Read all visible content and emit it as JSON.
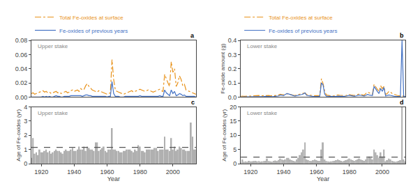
{
  "chart_data": [
    {
      "type": "line",
      "x": [
        1914,
        1915,
        1916,
        1917,
        1918,
        1919,
        1920,
        1921,
        1922,
        1923,
        1924,
        1925,
        1926,
        1927,
        1928,
        1929,
        1930,
        1931,
        1932,
        1933,
        1934,
        1935,
        1936,
        1937,
        1938,
        1939,
        1940,
        1941,
        1942,
        1943,
        1944,
        1945,
        1946,
        1947,
        1948,
        1949,
        1950,
        1951,
        1952,
        1953,
        1954,
        1955,
        1956,
        1957,
        1958,
        1959,
        1960,
        1961,
        1962,
        1963,
        1964,
        1965,
        1966,
        1967,
        1968,
        1969,
        1970,
        1971,
        1972,
        1973,
        1974,
        1975,
        1976,
        1977,
        1978,
        1979,
        1980,
        1981,
        1982,
        1983,
        1984,
        1985,
        1986,
        1987,
        1988,
        1989,
        1990,
        1991,
        1992,
        1993,
        1994,
        1995,
        1996,
        1997,
        1998,
        1999,
        2000,
        2001,
        2002,
        2003,
        2004,
        2005,
        2006,
        2007,
        2008,
        2009,
        2010,
        2011,
        2012,
        2013,
        2014
      ],
      "series": [
        {
          "name": "Total Fe-oxides at surface",
          "color": "#E8921A",
          "line_style": "dashdot",
          "values": [
            0.005,
            0.006,
            0.004,
            0.005,
            0.006,
            0.007,
            0.008,
            0.009,
            0.007,
            0.008,
            0.006,
            0.007,
            0.005,
            0.006,
            0.007,
            0.008,
            0.006,
            0.007,
            0.005,
            0.006,
            0.007,
            0.008,
            0.006,
            0.007,
            0.009,
            0.01,
            0.008,
            0.009,
            0.01,
            0.008,
            0.012,
            0.01,
            0.011,
            0.016,
            0.019,
            0.015,
            0.012,
            0.01,
            0.009,
            0.008,
            0.007,
            0.009,
            0.008,
            0.007,
            0.006,
            0.005,
            0.004,
            0.005,
            0.006,
            0.053,
            0.025,
            0.01,
            0.008,
            0.007,
            0.006,
            0.005,
            0.004,
            0.005,
            0.006,
            0.007,
            0.008,
            0.009,
            0.007,
            0.008,
            0.009,
            0.01,
            0.011,
            0.01,
            0.009,
            0.008,
            0.009,
            0.01,
            0.009,
            0.008,
            0.007,
            0.008,
            0.009,
            0.01,
            0.011,
            0.009,
            0.008,
            0.032,
            0.025,
            0.02,
            0.015,
            0.05,
            0.035,
            0.04,
            0.015,
            0.02,
            0.03,
            0.025,
            0.016,
            0.018,
            0.01,
            0.009,
            0.008,
            0.007,
            0.006,
            0.005,
            0.004
          ]
        },
        {
          "name": "Fe-oxides of previous years",
          "color": "#4472C4",
          "line_style": "solid",
          "values": [
            0.0,
            0.0,
            0.0,
            0.0,
            0.0,
            0.0,
            0.0,
            0.001,
            0.0,
            0.001,
            0.0,
            0.001,
            0.0,
            0.0,
            0.001,
            0.002,
            0.001,
            0.001,
            0.0,
            0.0,
            0.001,
            0.001,
            0.001,
            0.001,
            0.002,
            0.002,
            0.002,
            0.002,
            0.002,
            0.002,
            0.002,
            0.001,
            0.002,
            0.003,
            0.003,
            0.002,
            0.002,
            0.001,
            0.001,
            0.001,
            0.001,
            0.001,
            0.001,
            0.001,
            0.001,
            0.001,
            0.0,
            0.001,
            0.001,
            0.022,
            0.005,
            0.001,
            0.001,
            0.001,
            0.0,
            0.0,
            0.0,
            0.001,
            0.001,
            0.001,
            0.001,
            0.001,
            0.001,
            0.001,
            0.001,
            0.001,
            0.002,
            0.001,
            0.001,
            0.001,
            0.001,
            0.001,
            0.001,
            0.001,
            0.001,
            0.001,
            0.001,
            0.001,
            0.002,
            0.001,
            0.001,
            0.01,
            0.006,
            0.004,
            0.002,
            0.01,
            0.005,
            0.008,
            0.002,
            0.003,
            0.005,
            0.004,
            0.002,
            0.003,
            0.001,
            0.001,
            0.001,
            0.001,
            0.001,
            0.001,
            0.0
          ]
        }
      ],
      "xlim": [
        1914,
        2014
      ],
      "ylim": [
        0,
        0.08
      ],
      "yticks": [
        {
          "value": 0,
          "label": "0.00"
        },
        0.02,
        0.04,
        0.06,
        0.08
      ],
      "tick_labels": "y",
      "grid": false,
      "legend": "top left",
      "annotations": [
        {
          "text": "Upper stake",
          "color": "#888888"
        },
        {
          "text": "a"
        }
      ]
    },
    {
      "type": "line",
      "x": [
        1914,
        1915,
        1916,
        1917,
        1918,
        1919,
        1920,
        1921,
        1922,
        1923,
        1924,
        1925,
        1926,
        1927,
        1928,
        1929,
        1930,
        1931,
        1932,
        1933,
        1934,
        1935,
        1936,
        1937,
        1938,
        1939,
        1940,
        1941,
        1942,
        1943,
        1944,
        1945,
        1946,
        1947,
        1948,
        1949,
        1950,
        1951,
        1952,
        1953,
        1954,
        1955,
        1956,
        1957,
        1958,
        1959,
        1960,
        1961,
        1962,
        1963,
        1964,
        1965,
        1966,
        1967,
        1968,
        1969,
        1970,
        1971,
        1972,
        1973,
        1974,
        1975,
        1976,
        1977,
        1978,
        1979,
        1980,
        1981,
        1982,
        1983,
        1984,
        1985,
        1986,
        1987,
        1988,
        1989,
        1990,
        1991,
        1992,
        1993,
        1994,
        1995,
        1996,
        1997,
        1998,
        1999,
        2000,
        2001,
        2002,
        2003,
        2004,
        2005,
        2006,
        2007,
        2008,
        2009,
        2010,
        2011,
        2012,
        2013,
        2014
      ],
      "series": [
        {
          "name": "Total Fe-oxides at surface",
          "color": "#E8921A",
          "line_style": "dashdot",
          "values": [
            0.005,
            0.007,
            0.005,
            0.006,
            0.007,
            0.008,
            0.008,
            0.01,
            0.009,
            0.012,
            0.01,
            0.011,
            0.009,
            0.01,
            0.011,
            0.012,
            0.01,
            0.011,
            0.009,
            0.01,
            0.012,
            0.011,
            0.01,
            0.015,
            0.02,
            0.018,
            0.016,
            0.02,
            0.025,
            0.022,
            0.018,
            0.015,
            0.013,
            0.012,
            0.015,
            0.018,
            0.02,
            0.022,
            0.025,
            0.03,
            0.018,
            0.015,
            0.013,
            0.012,
            0.01,
            0.009,
            0.008,
            0.01,
            0.012,
            0.13,
            0.095,
            0.04,
            0.015,
            0.012,
            0.01,
            0.008,
            0.007,
            0.009,
            0.012,
            0.015,
            0.013,
            0.011,
            0.009,
            0.01,
            0.012,
            0.015,
            0.018,
            0.015,
            0.013,
            0.011,
            0.015,
            0.018,
            0.022,
            0.018,
            0.015,
            0.013,
            0.025,
            0.035,
            0.03,
            0.025,
            0.02,
            0.09,
            0.07,
            0.055,
            0.04,
            0.08,
            0.06,
            0.075,
            0.018,
            0.025,
            0.04,
            0.035,
            0.025,
            0.02,
            0.015,
            0.012,
            0.01,
            0.009,
            0.008,
            0.007,
            0.006
          ]
        },
        {
          "name": "Fe-oxides of previous years",
          "color": "#4472C4",
          "line_style": "solid",
          "values": [
            0.0,
            0.001,
            0.001,
            0.001,
            0.001,
            0.001,
            0.001,
            0.002,
            0.002,
            0.002,
            0.002,
            0.003,
            0.003,
            0.003,
            0.004,
            0.005,
            0.004,
            0.004,
            0.003,
            0.003,
            0.004,
            0.005,
            0.004,
            0.008,
            0.015,
            0.012,
            0.01,
            0.018,
            0.025,
            0.022,
            0.018,
            0.012,
            0.01,
            0.008,
            0.01,
            0.012,
            0.015,
            0.018,
            0.022,
            0.03,
            0.012,
            0.009,
            0.007,
            0.006,
            0.005,
            0.004,
            0.003,
            0.004,
            0.006,
            0.1,
            0.085,
            0.02,
            0.006,
            0.005,
            0.004,
            0.003,
            0.003,
            0.004,
            0.005,
            0.007,
            0.006,
            0.005,
            0.004,
            0.005,
            0.007,
            0.01,
            0.012,
            0.01,
            0.008,
            0.006,
            0.008,
            0.012,
            0.015,
            0.012,
            0.01,
            0.008,
            0.012,
            0.018,
            0.015,
            0.012,
            0.01,
            0.075,
            0.055,
            0.04,
            0.025,
            0.06,
            0.04,
            0.068,
            0.008,
            0.01,
            0.015,
            0.012,
            0.008,
            0.006,
            0.005,
            0.004,
            0.003,
            0.003,
            0.4,
            0.005,
            0.003
          ]
        }
      ],
      "xlim": [
        1914,
        2014
      ],
      "ylim": [
        0,
        0.4
      ],
      "yticks": [
        {
          "value": 0,
          "label": "0.0"
        },
        0.1,
        0.2,
        0.3,
        0.4
      ],
      "ylabel": "Fe-oxide amount (g)",
      "tick_labels": "y",
      "grid": false,
      "legend": "top left",
      "annotations": [
        {
          "text": "Lower stake",
          "color": "#888888"
        },
        {
          "text": "b"
        }
      ]
    },
    {
      "type": "bar",
      "x": [
        1914,
        1915,
        1916,
        1917,
        1918,
        1919,
        1920,
        1921,
        1922,
        1923,
        1924,
        1925,
        1926,
        1927,
        1928,
        1929,
        1930,
        1931,
        1932,
        1933,
        1934,
        1935,
        1936,
        1937,
        1938,
        1939,
        1940,
        1941,
        1942,
        1943,
        1944,
        1945,
        1946,
        1947,
        1948,
        1949,
        1950,
        1951,
        1952,
        1953,
        1954,
        1955,
        1956,
        1957,
        1958,
        1959,
        1960,
        1961,
        1962,
        1963,
        1964,
        1965,
        1966,
        1967,
        1968,
        1969,
        1970,
        1971,
        1972,
        1973,
        1974,
        1975,
        1976,
        1977,
        1978,
        1979,
        1980,
        1981,
        1982,
        1983,
        1984,
        1985,
        1986,
        1987,
        1988,
        1989,
        1990,
        1991,
        1992,
        1993,
        1994,
        1995,
        1996,
        1997,
        1998,
        1999,
        2000,
        2001,
        2002,
        2003,
        2004,
        2005,
        2006,
        2007,
        2008,
        2009,
        2010,
        2011,
        2012,
        2013,
        2014
      ],
      "values": [
        0.4,
        1.8,
        0.7,
        0.8,
        0.6,
        1.0,
        0.8,
        0.8,
        0.9,
        1.0,
        0.8,
        0.9,
        0.7,
        0.8,
        0.9,
        1.0,
        0.9,
        0.9,
        0.8,
        0.7,
        0.9,
        1.0,
        0.9,
        0.9,
        1.0,
        1.1,
        0.9,
        0.9,
        1.0,
        1.2,
        1.0,
        1.0,
        1.2,
        0.9,
        1.2,
        1.1,
        1.0,
        1.0,
        0.9,
        1.5,
        1.5,
        0.9,
        1.0,
        1.1,
        1.2,
        0.9,
        0.8,
        1.0,
        1.0,
        2.5,
        1.0,
        1.0,
        0.9,
        0.9,
        0.8,
        0.8,
        0.9,
        0.9,
        1.0,
        1.0,
        1.0,
        0.9,
        0.8,
        1.0,
        0.9,
        1.3,
        1.2,
        0.9,
        0.9,
        0.8,
        1.0,
        1.0,
        1.0,
        1.0,
        1.0,
        1.1,
        1.1,
        0.9,
        1.0,
        1.0,
        1.0,
        1.9,
        1.0,
        1.0,
        0.9,
        1.8,
        1.0,
        1.2,
        0.9,
        1.0,
        1.2,
        1.1,
        1.0,
        1.0,
        0.9,
        0.9,
        0.9,
        2.9,
        1.9,
        1.0,
        1.0
      ],
      "color": "#B0B0B0",
      "mean_line": {
        "y": 1.15,
        "color": "#555555",
        "line_style": "dash"
      },
      "xlim": [
        1914,
        2014
      ],
      "xticks": [
        1920,
        1940,
        1960,
        1980,
        2000
      ],
      "ylim": [
        0,
        4
      ],
      "yticks": [
        0,
        1,
        2,
        3,
        4
      ],
      "xlabel": "Year",
      "ylabel": "Age of Fe-oxides (yr)",
      "grid": false,
      "annotations": [
        {
          "text": "Upper stake",
          "color": "#888888"
        },
        {
          "text": "c"
        }
      ]
    },
    {
      "type": "bar",
      "x": [
        1914,
        1915,
        1916,
        1917,
        1918,
        1919,
        1920,
        1921,
        1922,
        1923,
        1924,
        1925,
        1926,
        1927,
        1928,
        1929,
        1930,
        1931,
        1932,
        1933,
        1934,
        1935,
        1936,
        1937,
        1938,
        1939,
        1940,
        1941,
        1942,
        1943,
        1944,
        1945,
        1946,
        1947,
        1948,
        1949,
        1950,
        1951,
        1952,
        1953,
        1954,
        1955,
        1956,
        1957,
        1958,
        1959,
        1960,
        1961,
        1962,
        1963,
        1964,
        1965,
        1966,
        1967,
        1968,
        1969,
        1970,
        1971,
        1972,
        1973,
        1974,
        1975,
        1976,
        1977,
        1978,
        1979,
        1980,
        1981,
        1982,
        1983,
        1984,
        1985,
        1986,
        1987,
        1988,
        1989,
        1990,
        1991,
        1992,
        1993,
        1994,
        1995,
        1996,
        1997,
        1998,
        1999,
        2000,
        2001,
        2002,
        2003,
        2004,
        2005,
        2006,
        2007,
        2008,
        2009,
        2010,
        2011,
        2012,
        2013,
        2014
      ],
      "values": [
        0.4,
        1.5,
        0.7,
        0.8,
        0.6,
        1.0,
        0.8,
        0.8,
        0.9,
        1.0,
        0.8,
        0.9,
        0.7,
        0.8,
        0.9,
        1.0,
        1.8,
        0.9,
        0.8,
        0.7,
        1.0,
        1.1,
        0.9,
        1.3,
        1.8,
        1.5,
        1.2,
        1.5,
        2.0,
        2.0,
        1.5,
        1.2,
        1.0,
        0.8,
        1.5,
        2.0,
        3.0,
        4.0,
        5.0,
        7.5,
        1.5,
        1.2,
        1.0,
        0.9,
        1.2,
        1.5,
        1.2,
        1.0,
        1.0,
        5.0,
        7.5,
        1.5,
        0.9,
        0.8,
        0.7,
        0.8,
        0.9,
        1.0,
        1.2,
        1.5,
        1.2,
        1.0,
        0.8,
        1.0,
        1.2,
        1.5,
        1.8,
        1.5,
        1.2,
        1.0,
        1.2,
        1.5,
        1.8,
        1.5,
        1.2,
        1.0,
        1.5,
        2.0,
        2.5,
        2.0,
        1.5,
        5.0,
        4.0,
        3.0,
        2.0,
        4.0,
        2.5,
        5.0,
        0.8,
        1.2,
        1.8,
        1.5,
        1.0,
        0.8,
        0.7,
        0.8,
        1.0,
        1.2,
        20.0,
        1.5,
        0.8
      ],
      "color": "#B0B0B0",
      "mean_line": {
        "y": 2.3,
        "color": "#555555",
        "line_style": "dash"
      },
      "xlim": [
        1914,
        2014
      ],
      "xticks": [
        1920,
        1940,
        1960,
        1980,
        2000
      ],
      "ylim": [
        0,
        20
      ],
      "yticks": [
        0,
        5,
        10,
        15,
        20
      ],
      "xlabel": "Year",
      "ylabel": "Age of Fe-oxides (yr)",
      "grid": false,
      "annotations": [
        {
          "text": "Lower stake",
          "color": "#888888"
        },
        {
          "text": "d"
        }
      ]
    }
  ]
}
